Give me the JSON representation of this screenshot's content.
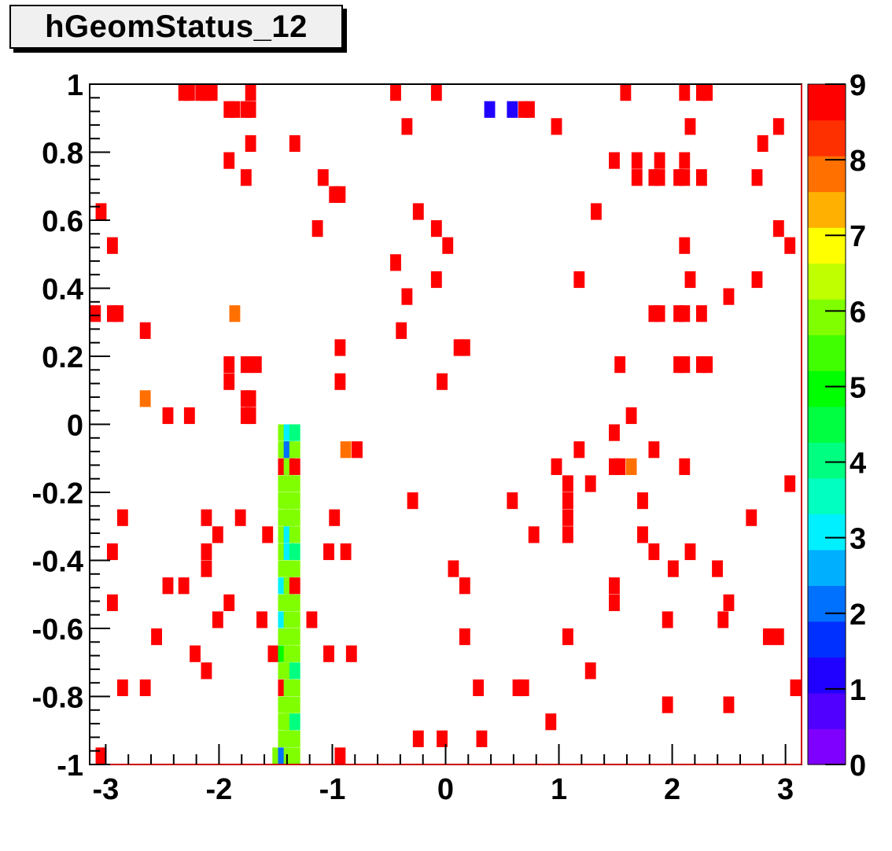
{
  "title": "hGeomStatus_12",
  "chart_data": {
    "type": "heatmap",
    "title": "hGeomStatus_12",
    "xlabel": "",
    "ylabel": "",
    "xlim": [
      -3.1416,
      3.1416
    ],
    "ylim": [
      -1,
      1
    ],
    "zlim": [
      0,
      9
    ],
    "x_bins": 64,
    "y_bins": 40,
    "x_ticks": [
      -3,
      -2,
      -1,
      0,
      1,
      2,
      3
    ],
    "x_tick_labels": [
      "-3",
      "-2",
      "-1",
      "0",
      "1",
      "2",
      "3"
    ],
    "y_ticks": [
      -1,
      -0.8,
      -0.6,
      -0.4,
      -0.2,
      0,
      0.2,
      0.4,
      0.6,
      0.8,
      1
    ],
    "y_tick_labels": [
      "-1",
      "-0.8",
      "-0.6",
      "-0.4",
      "-0.2",
      "0",
      "0.2",
      "0.4",
      "0.6",
      "0.8",
      "1"
    ],
    "z_ticks": [
      0,
      1,
      2,
      3,
      4,
      5,
      6,
      7,
      8,
      9
    ],
    "z_tick_labels": [
      "0",
      "1",
      "2",
      "3",
      "4",
      "5",
      "6",
      "7",
      "8",
      "9"
    ],
    "palette": [
      "#8000ff",
      "#5000ff",
      "#2000ff",
      "#0030ff",
      "#0070ff",
      "#00b0ff",
      "#00f0ff",
      "#00ffc0",
      "#00ff80",
      "#00ff40",
      "#00ff00",
      "#40ff00",
      "#80ff00",
      "#c0ff00",
      "#ffff00",
      "#ffb000",
      "#ff7000",
      "#ff3000",
      "#ff0000"
    ],
    "cells": [
      {
        "x": -2.31,
        "y": 0.975,
        "z": 9
      },
      {
        "x": -2.26,
        "y": 0.975,
        "z": 9
      },
      {
        "x": -2.16,
        "y": 0.975,
        "z": 9
      },
      {
        "x": -2.11,
        "y": 0.975,
        "z": 9
      },
      {
        "x": -2.06,
        "y": 0.975,
        "z": 9
      },
      {
        "x": -1.72,
        "y": 0.975,
        "z": 9
      },
      {
        "x": -0.44,
        "y": 0.975,
        "z": 9
      },
      {
        "x": -0.08,
        "y": 0.975,
        "z": 9
      },
      {
        "x": 1.59,
        "y": 0.975,
        "z": 9
      },
      {
        "x": 2.11,
        "y": 0.975,
        "z": 9
      },
      {
        "x": 2.26,
        "y": 0.975,
        "z": 9
      },
      {
        "x": 2.31,
        "y": 0.975,
        "z": 9
      },
      {
        "x": -1.91,
        "y": 0.925,
        "z": 9
      },
      {
        "x": -1.86,
        "y": 0.925,
        "z": 9
      },
      {
        "x": -1.76,
        "y": 0.925,
        "z": 9
      },
      {
        "x": -1.72,
        "y": 0.925,
        "z": 9
      },
      {
        "x": 0.39,
        "y": 0.925,
        "z": 1
      },
      {
        "x": 0.59,
        "y": 0.925,
        "z": 1
      },
      {
        "x": 0.69,
        "y": 0.925,
        "z": 9
      },
      {
        "x": 0.74,
        "y": 0.925,
        "z": 9
      },
      {
        "x": -0.34,
        "y": 0.875,
        "z": 9
      },
      {
        "x": 0.98,
        "y": 0.875,
        "z": 9
      },
      {
        "x": 2.16,
        "y": 0.875,
        "z": 9
      },
      {
        "x": 2.94,
        "y": 0.875,
        "z": 9
      },
      {
        "x": -1.72,
        "y": 0.825,
        "z": 9
      },
      {
        "x": -1.33,
        "y": 0.825,
        "z": 9
      },
      {
        "x": 2.8,
        "y": 0.825,
        "z": 9
      },
      {
        "x": -1.91,
        "y": 0.775,
        "z": 9
      },
      {
        "x": 1.49,
        "y": 0.775,
        "z": 9
      },
      {
        "x": 1.69,
        "y": 0.775,
        "z": 9
      },
      {
        "x": 1.89,
        "y": 0.775,
        "z": 9
      },
      {
        "x": 2.11,
        "y": 0.775,
        "z": 9
      },
      {
        "x": -1.76,
        "y": 0.725,
        "z": 9
      },
      {
        "x": -1.08,
        "y": 0.725,
        "z": 9
      },
      {
        "x": 1.69,
        "y": 0.725,
        "z": 9
      },
      {
        "x": 1.84,
        "y": 0.725,
        "z": 9
      },
      {
        "x": 1.89,
        "y": 0.725,
        "z": 9
      },
      {
        "x": 2.06,
        "y": 0.725,
        "z": 9
      },
      {
        "x": 2.11,
        "y": 0.725,
        "z": 9
      },
      {
        "x": 2.26,
        "y": 0.725,
        "z": 9
      },
      {
        "x": 2.75,
        "y": 0.725,
        "z": 9
      },
      {
        "x": -0.98,
        "y": 0.675,
        "z": 9
      },
      {
        "x": -0.93,
        "y": 0.675,
        "z": 9
      },
      {
        "x": -3.04,
        "y": 0.625,
        "z": 9
      },
      {
        "x": -0.24,
        "y": 0.625,
        "z": 9
      },
      {
        "x": 1.33,
        "y": 0.625,
        "z": 9
      },
      {
        "x": -1.13,
        "y": 0.575,
        "z": 9
      },
      {
        "x": -0.08,
        "y": 0.575,
        "z": 9
      },
      {
        "x": 2.94,
        "y": 0.575,
        "z": 9
      },
      {
        "x": -2.94,
        "y": 0.525,
        "z": 9
      },
      {
        "x": 0.02,
        "y": 0.525,
        "z": 9
      },
      {
        "x": 2.11,
        "y": 0.525,
        "z": 9
      },
      {
        "x": 3.04,
        "y": 0.525,
        "z": 9
      },
      {
        "x": -0.44,
        "y": 0.475,
        "z": 9
      },
      {
        "x": -0.08,
        "y": 0.425,
        "z": 9
      },
      {
        "x": 1.18,
        "y": 0.425,
        "z": 9
      },
      {
        "x": 2.16,
        "y": 0.425,
        "z": 9
      },
      {
        "x": 2.75,
        "y": 0.425,
        "z": 9
      },
      {
        "x": -0.34,
        "y": 0.375,
        "z": 9
      },
      {
        "x": 2.5,
        "y": 0.375,
        "z": 9
      },
      {
        "x": -3.09,
        "y": 0.325,
        "z": 9
      },
      {
        "x": -2.94,
        "y": 0.325,
        "z": 9
      },
      {
        "x": -2.89,
        "y": 0.325,
        "z": 9
      },
      {
        "x": -1.86,
        "y": 0.325,
        "z": 8
      },
      {
        "x": 1.84,
        "y": 0.325,
        "z": 9
      },
      {
        "x": 1.89,
        "y": 0.325,
        "z": 9
      },
      {
        "x": 2.06,
        "y": 0.325,
        "z": 9
      },
      {
        "x": 2.11,
        "y": 0.325,
        "z": 9
      },
      {
        "x": 2.26,
        "y": 0.325,
        "z": 9
      },
      {
        "x": -2.65,
        "y": 0.275,
        "z": 9
      },
      {
        "x": -0.39,
        "y": 0.275,
        "z": 9
      },
      {
        "x": -0.93,
        "y": 0.225,
        "z": 9
      },
      {
        "x": 0.12,
        "y": 0.225,
        "z": 9
      },
      {
        "x": 0.17,
        "y": 0.225,
        "z": 9
      },
      {
        "x": -1.91,
        "y": 0.175,
        "z": 9
      },
      {
        "x": -1.76,
        "y": 0.175,
        "z": 9
      },
      {
        "x": -1.67,
        "y": 0.175,
        "z": 9
      },
      {
        "x": 1.54,
        "y": 0.175,
        "z": 9
      },
      {
        "x": 2.06,
        "y": 0.175,
        "z": 9
      },
      {
        "x": 2.11,
        "y": 0.175,
        "z": 9
      },
      {
        "x": 2.26,
        "y": 0.175,
        "z": 9
      },
      {
        "x": 2.31,
        "y": 0.175,
        "z": 9
      },
      {
        "x": -1.91,
        "y": 0.125,
        "z": 9
      },
      {
        "x": -0.93,
        "y": 0.125,
        "z": 9
      },
      {
        "x": -0.03,
        "y": 0.125,
        "z": 9
      },
      {
        "x": -2.65,
        "y": 0.075,
        "z": 8
      },
      {
        "x": -1.76,
        "y": 0.075,
        "z": 9
      },
      {
        "x": -1.72,
        "y": 0.075,
        "z": 9
      },
      {
        "x": -2.45,
        "y": 0.025,
        "z": 9
      },
      {
        "x": -2.26,
        "y": 0.025,
        "z": 9
      },
      {
        "x": -1.76,
        "y": 0.025,
        "z": 9
      },
      {
        "x": -1.72,
        "y": 0.025,
        "z": 9
      },
      {
        "x": 1.64,
        "y": 0.025,
        "z": 9
      },
      {
        "x": -1.43,
        "y": -0.025,
        "z": 6
      },
      {
        "x": -1.38,
        "y": -0.025,
        "z": 3
      },
      {
        "x": -1.33,
        "y": -0.025,
        "z": 4
      },
      {
        "x": 1.49,
        "y": -0.025,
        "z": 9
      },
      {
        "x": -1.43,
        "y": -0.075,
        "z": 6
      },
      {
        "x": -1.38,
        "y": -0.075,
        "z": 2
      },
      {
        "x": -1.33,
        "y": -0.075,
        "z": 6
      },
      {
        "x": -0.88,
        "y": -0.075,
        "z": 8
      },
      {
        "x": -0.78,
        "y": -0.075,
        "z": 9
      },
      {
        "x": 1.18,
        "y": -0.075,
        "z": 9
      },
      {
        "x": 1.84,
        "y": -0.075,
        "z": 9
      },
      {
        "x": -1.43,
        "y": -0.125,
        "z": 9
      },
      {
        "x": -1.38,
        "y": -0.125,
        "z": 6
      },
      {
        "x": -1.33,
        "y": -0.125,
        "z": 9
      },
      {
        "x": 0.98,
        "y": -0.125,
        "z": 9
      },
      {
        "x": 1.49,
        "y": -0.125,
        "z": 9
      },
      {
        "x": 1.54,
        "y": -0.125,
        "z": 9
      },
      {
        "x": 1.64,
        "y": -0.125,
        "z": 8
      },
      {
        "x": 2.11,
        "y": -0.125,
        "z": 9
      },
      {
        "x": -1.43,
        "y": -0.175,
        "z": 6
      },
      {
        "x": -1.38,
        "y": -0.175,
        "z": 6
      },
      {
        "x": -1.33,
        "y": -0.175,
        "z": 6
      },
      {
        "x": 1.08,
        "y": -0.175,
        "z": 9
      },
      {
        "x": 1.28,
        "y": -0.175,
        "z": 9
      },
      {
        "x": 3.04,
        "y": -0.175,
        "z": 9
      },
      {
        "x": -1.43,
        "y": -0.225,
        "z": 6
      },
      {
        "x": -1.38,
        "y": -0.225,
        "z": 6
      },
      {
        "x": -1.33,
        "y": -0.225,
        "z": 6
      },
      {
        "x": -0.29,
        "y": -0.225,
        "z": 9
      },
      {
        "x": 0.59,
        "y": -0.225,
        "z": 9
      },
      {
        "x": 1.08,
        "y": -0.225,
        "z": 9
      },
      {
        "x": 1.74,
        "y": -0.225,
        "z": 9
      },
      {
        "x": -2.85,
        "y": -0.275,
        "z": 9
      },
      {
        "x": -2.11,
        "y": -0.275,
        "z": 9
      },
      {
        "x": -1.81,
        "y": -0.275,
        "z": 9
      },
      {
        "x": -1.43,
        "y": -0.275,
        "z": 6
      },
      {
        "x": -1.38,
        "y": -0.275,
        "z": 6
      },
      {
        "x": -1.33,
        "y": -0.275,
        "z": 6
      },
      {
        "x": -0.98,
        "y": -0.275,
        "z": 9
      },
      {
        "x": 1.08,
        "y": -0.275,
        "z": 9
      },
      {
        "x": 2.7,
        "y": -0.275,
        "z": 9
      },
      {
        "x": -2.01,
        "y": -0.325,
        "z": 9
      },
      {
        "x": -1.57,
        "y": -0.325,
        "z": 9
      },
      {
        "x": -1.43,
        "y": -0.325,
        "z": 6
      },
      {
        "x": -1.38,
        "y": -0.325,
        "z": 3
      },
      {
        "x": -1.33,
        "y": -0.325,
        "z": 6
      },
      {
        "x": 0.78,
        "y": -0.325,
        "z": 9
      },
      {
        "x": 1.08,
        "y": -0.325,
        "z": 9
      },
      {
        "x": 1.74,
        "y": -0.325,
        "z": 9
      },
      {
        "x": -2.94,
        "y": -0.375,
        "z": 9
      },
      {
        "x": -2.11,
        "y": -0.375,
        "z": 9
      },
      {
        "x": -1.43,
        "y": -0.375,
        "z": 6
      },
      {
        "x": -1.38,
        "y": -0.375,
        "z": 3
      },
      {
        "x": -1.33,
        "y": -0.375,
        "z": 4
      },
      {
        "x": -1.03,
        "y": -0.375,
        "z": 9
      },
      {
        "x": -0.88,
        "y": -0.375,
        "z": 9
      },
      {
        "x": 1.84,
        "y": -0.375,
        "z": 9
      },
      {
        "x": 2.16,
        "y": -0.375,
        "z": 9
      },
      {
        "x": -2.11,
        "y": -0.425,
        "z": 9
      },
      {
        "x": -1.43,
        "y": -0.425,
        "z": 6
      },
      {
        "x": -1.38,
        "y": -0.425,
        "z": 6
      },
      {
        "x": -1.33,
        "y": -0.425,
        "z": 6
      },
      {
        "x": 0.07,
        "y": -0.425,
        "z": 9
      },
      {
        "x": 2.01,
        "y": -0.425,
        "z": 9
      },
      {
        "x": 2.4,
        "y": -0.425,
        "z": 9
      },
      {
        "x": -2.45,
        "y": -0.475,
        "z": 9
      },
      {
        "x": -2.31,
        "y": -0.475,
        "z": 9
      },
      {
        "x": -1.43,
        "y": -0.475,
        "z": 3
      },
      {
        "x": -1.38,
        "y": -0.475,
        "z": 6
      },
      {
        "x": -1.33,
        "y": -0.475,
        "z": 9
      },
      {
        "x": 0.17,
        "y": -0.475,
        "z": 9
      },
      {
        "x": 1.49,
        "y": -0.475,
        "z": 9
      },
      {
        "x": -2.94,
        "y": -0.525,
        "z": 9
      },
      {
        "x": -1.91,
        "y": -0.525,
        "z": 9
      },
      {
        "x": -1.43,
        "y": -0.525,
        "z": 6
      },
      {
        "x": -1.38,
        "y": -0.525,
        "z": 6
      },
      {
        "x": -1.33,
        "y": -0.525,
        "z": 6
      },
      {
        "x": 1.49,
        "y": -0.525,
        "z": 9
      },
      {
        "x": 2.5,
        "y": -0.525,
        "z": 9
      },
      {
        "x": -2.01,
        "y": -0.575,
        "z": 9
      },
      {
        "x": -1.62,
        "y": -0.575,
        "z": 9
      },
      {
        "x": -1.43,
        "y": -0.575,
        "z": 3
      },
      {
        "x": -1.38,
        "y": -0.575,
        "z": 6
      },
      {
        "x": -1.33,
        "y": -0.575,
        "z": 6
      },
      {
        "x": -1.18,
        "y": -0.575,
        "z": 9
      },
      {
        "x": 1.96,
        "y": -0.575,
        "z": 9
      },
      {
        "x": 2.45,
        "y": -0.575,
        "z": 9
      },
      {
        "x": -2.55,
        "y": -0.625,
        "z": 9
      },
      {
        "x": -1.43,
        "y": -0.625,
        "z": 6
      },
      {
        "x": -1.38,
        "y": -0.625,
        "z": 6
      },
      {
        "x": -1.33,
        "y": -0.625,
        "z": 6
      },
      {
        "x": 0.17,
        "y": -0.625,
        "z": 9
      },
      {
        "x": 1.08,
        "y": -0.625,
        "z": 9
      },
      {
        "x": 2.85,
        "y": -0.625,
        "z": 9
      },
      {
        "x": 2.94,
        "y": -0.625,
        "z": 9
      },
      {
        "x": -2.21,
        "y": -0.675,
        "z": 9
      },
      {
        "x": -1.52,
        "y": -0.675,
        "z": 9
      },
      {
        "x": -1.43,
        "y": -0.675,
        "z": 5
      },
      {
        "x": -1.38,
        "y": -0.675,
        "z": 6
      },
      {
        "x": -1.33,
        "y": -0.675,
        "z": 6
      },
      {
        "x": -1.03,
        "y": -0.675,
        "z": 9
      },
      {
        "x": -0.83,
        "y": -0.675,
        "z": 9
      },
      {
        "x": -2.11,
        "y": -0.725,
        "z": 9
      },
      {
        "x": -1.43,
        "y": -0.725,
        "z": 6
      },
      {
        "x": -1.38,
        "y": -0.725,
        "z": 6
      },
      {
        "x": -1.33,
        "y": -0.725,
        "z": 4
      },
      {
        "x": 1.28,
        "y": -0.725,
        "z": 9
      },
      {
        "x": -2.85,
        "y": -0.775,
        "z": 9
      },
      {
        "x": -2.65,
        "y": -0.775,
        "z": 9
      },
      {
        "x": -1.43,
        "y": -0.775,
        "z": 9
      },
      {
        "x": -1.38,
        "y": -0.775,
        "z": 6
      },
      {
        "x": -1.33,
        "y": -0.775,
        "z": 6
      },
      {
        "x": 0.29,
        "y": -0.775,
        "z": 9
      },
      {
        "x": 0.64,
        "y": -0.775,
        "z": 9
      },
      {
        "x": 0.69,
        "y": -0.775,
        "z": 9
      },
      {
        "x": 3.09,
        "y": -0.775,
        "z": 9
      },
      {
        "x": -1.43,
        "y": -0.825,
        "z": 6
      },
      {
        "x": -1.38,
        "y": -0.825,
        "z": 6
      },
      {
        "x": -1.33,
        "y": -0.825,
        "z": 6
      },
      {
        "x": 1.96,
        "y": -0.825,
        "z": 9
      },
      {
        "x": 2.5,
        "y": -0.825,
        "z": 9
      },
      {
        "x": -1.43,
        "y": -0.875,
        "z": 6
      },
      {
        "x": -1.38,
        "y": -0.875,
        "z": 6
      },
      {
        "x": -1.33,
        "y": -0.875,
        "z": 4
      },
      {
        "x": 0.93,
        "y": -0.875,
        "z": 9
      },
      {
        "x": -1.43,
        "y": -0.925,
        "z": 6
      },
      {
        "x": -1.38,
        "y": -0.925,
        "z": 6
      },
      {
        "x": -1.33,
        "y": -0.925,
        "z": 6
      },
      {
        "x": -0.24,
        "y": -0.925,
        "z": 9
      },
      {
        "x": -0.03,
        "y": -0.925,
        "z": 9
      },
      {
        "x": 0.32,
        "y": -0.925,
        "z": 9
      },
      {
        "x": -3.04,
        "y": -0.975,
        "z": 9
      },
      {
        "x": -1.48,
        "y": -0.975,
        "z": 6
      },
      {
        "x": -1.43,
        "y": -0.975,
        "z": 2
      },
      {
        "x": -1.38,
        "y": -0.975,
        "z": 6
      },
      {
        "x": -1.33,
        "y": -0.975,
        "z": 6
      },
      {
        "x": -0.93,
        "y": -0.975,
        "z": 9
      }
    ]
  }
}
